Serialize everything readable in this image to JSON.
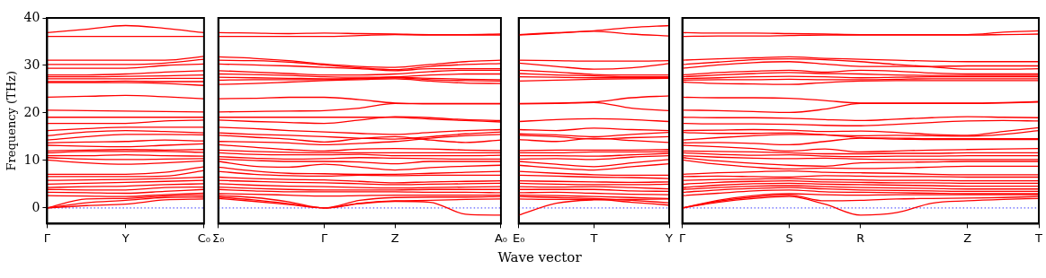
{
  "chart_data": [
    {
      "type": "line",
      "ylabel": "Frequency (THz)",
      "color": "#ff0000",
      "marker": "none",
      "grid": false,
      "legend": false,
      "categories": [
        "Γ",
        null,
        "Y",
        null,
        "C₀"
      ],
      "ylim": [
        -3.3,
        40
      ],
      "yticks": [
        0,
        10,
        20,
        30,
        40
      ],
      "ref_lines": [
        {
          "axis": "y",
          "value": 0,
          "color": "#0000ff",
          "line_style": "dotted"
        }
      ],
      "series": [
        {
          "values": [
            36.9,
            37.6,
            38.4,
            37.8,
            36.9
          ]
        },
        {
          "values": [
            36.1,
            36.1,
            36.1,
            36.1,
            36.1
          ]
        },
        {
          "values": [
            31.1,
            31.1,
            31.1,
            31.1,
            31.9
          ]
        },
        {
          "values": [
            30.2,
            30.2,
            30.2,
            30.5,
            31.3
          ]
        },
        {
          "values": [
            29.4,
            29.4,
            29.4,
            30.0,
            30.3
          ]
        },
        {
          "values": [
            28.0,
            28.0,
            28.2,
            28.6,
            28.9
          ]
        },
        {
          "values": [
            27.6,
            27.6,
            27.7,
            27.8,
            28.0
          ]
        },
        {
          "values": [
            27.2,
            27.2,
            27.2,
            27.3,
            27.3
          ]
        },
        {
          "values": [
            26.6,
            26.6,
            26.7,
            26.6,
            26.6
          ]
        },
        {
          "values": [
            26.4,
            26.4,
            26.4,
            26.2,
            25.8
          ]
        },
        {
          "values": [
            23.3,
            23.5,
            23.7,
            23.4,
            23.0
          ]
        },
        {
          "values": [
            20.6,
            20.5,
            20.4,
            20.3,
            20.2
          ]
        },
        {
          "values": [
            19.1,
            19.1,
            19.1,
            19.1,
            19.1
          ]
        },
        {
          "values": [
            17.8,
            17.8,
            17.8,
            18.3,
            18.5
          ]
        },
        {
          "values": [
            16.3,
            16.7,
            17.0,
            17.0,
            17.0
          ]
        },
        {
          "values": [
            15.2,
            16.0,
            16.3,
            16.1,
            15.8
          ]
        },
        {
          "values": [
            14.3,
            15.0,
            15.5,
            15.5,
            15.4
          ]
        },
        {
          "values": [
            13.7,
            13.9,
            14.0,
            14.3,
            14.1
          ]
        },
        {
          "values": [
            13.2,
            13.0,
            12.9,
            13.2,
            13.5
          ]
        },
        {
          "values": [
            12.0,
            12.2,
            12.3,
            12.2,
            12.3
          ]
        },
        {
          "values": [
            11.6,
            11.9,
            11.9,
            11.9,
            11.7
          ]
        },
        {
          "values": [
            11.0,
            11.0,
            11.2,
            11.0,
            10.9
          ]
        },
        {
          "values": [
            10.6,
            10.3,
            10.2,
            10.3,
            10.4
          ]
        },
        {
          "values": [
            10.1,
            9.5,
            9.2,
            9.5,
            9.9
          ]
        },
        {
          "values": [
            7.1,
            7.1,
            7.1,
            7.5,
            8.7
          ]
        },
        {
          "values": [
            6.6,
            6.6,
            6.6,
            6.7,
            7.9
          ]
        },
        {
          "values": [
            5.8,
            5.9,
            6.0,
            6.2,
            6.5
          ]
        },
        {
          "values": [
            5.0,
            5.2,
            5.4,
            5.6,
            5.8
          ]
        },
        {
          "values": [
            4.3,
            4.5,
            4.6,
            4.9,
            5.1
          ]
        },
        {
          "values": [
            3.9,
            3.8,
            3.8,
            4.3,
            4.4
          ]
        },
        {
          "values": [
            3.3,
            3.2,
            3.1,
            3.5,
            3.9
          ]
        },
        {
          "values": [
            2.6,
            2.5,
            2.4,
            2.8,
            3.1
          ]
        },
        {
          "values": [
            0,
            1.9,
            2.0,
            2.5,
            2.7
          ]
        },
        {
          "values": [
            0,
            1.1,
            1.6,
            2.2,
            2.3
          ]
        },
        {
          "values": [
            0,
            0.5,
            0.8,
            1.7,
            1.9
          ]
        }
      ]
    },
    {
      "type": "line",
      "color": "#ff0000",
      "marker": "none",
      "grid": false,
      "legend": false,
      "tick_labels": "x",
      "categories": [
        "Σ₀",
        null,
        null,
        "Γ",
        null,
        "Z",
        null,
        null,
        "A₀"
      ],
      "ylim": [
        -3.3,
        40
      ],
      "yticks": [
        0,
        10,
        20,
        30,
        40
      ],
      "ref_lines": [
        {
          "axis": "y",
          "value": 0,
          "color": "#0000ff",
          "line_style": "dotted"
        }
      ],
      "series": [
        {
          "values": [
            36.9,
            36.8,
            36.7,
            36.8,
            36.7,
            36.6,
            36.5,
            36.5,
            36.6
          ]
        },
        {
          "values": [
            36.1,
            36.1,
            36.1,
            36.1,
            36.3,
            36.5,
            36.4,
            36.4,
            36.4
          ]
        },
        {
          "values": [
            31.8,
            31.5,
            31.0,
            30.3,
            29.8,
            29.6,
            30.2,
            30.8,
            31.1
          ]
        },
        {
          "values": [
            31.1,
            31.0,
            30.7,
            30.1,
            29.5,
            29.1,
            29.8,
            30.2,
            30.4
          ]
        },
        {
          "values": [
            30.3,
            30.1,
            29.9,
            29.6,
            29.3,
            28.9,
            29.3,
            29.3,
            29.3
          ]
        },
        {
          "values": [
            28.9,
            28.6,
            28.3,
            28.0,
            28.0,
            28.2,
            28.7,
            29.0,
            29.0
          ]
        },
        {
          "values": [
            28.2,
            28.1,
            27.9,
            27.6,
            27.5,
            27.6,
            28.0,
            28.2,
            28.2
          ]
        },
        {
          "values": [
            27.5,
            27.4,
            27.3,
            27.2,
            27.3,
            27.5,
            27.3,
            27.1,
            27.0
          ]
        },
        {
          "values": [
            26.9,
            27.0,
            27.0,
            27.0,
            27.2,
            27.4,
            27.0,
            26.8,
            26.7
          ]
        },
        {
          "values": [
            26.0,
            26.2,
            26.5,
            26.8,
            27.0,
            27.2,
            26.7,
            26.3,
            26.2
          ]
        },
        {
          "values": [
            23.0,
            23.1,
            23.3,
            23.3,
            22.8,
            22.1,
            22.0,
            22.0,
            22.0
          ]
        },
        {
          "values": [
            20.2,
            20.3,
            20.4,
            20.5,
            21.0,
            22.0,
            21.9,
            21.9,
            21.9
          ]
        },
        {
          "values": [
            19.1,
            19.1,
            19.1,
            19.1,
            19.1,
            19.1,
            18.7,
            18.4,
            18.1
          ]
        },
        {
          "values": [
            18.5,
            18.2,
            18.0,
            17.8,
            18.5,
            19.2,
            19.0,
            18.6,
            18.4
          ]
        },
        {
          "values": [
            17.0,
            16.7,
            16.3,
            16.0,
            15.7,
            15.5,
            15.9,
            16.3,
            16.5
          ]
        },
        {
          "values": [
            15.8,
            15.5,
            15.3,
            15.0,
            14.7,
            14.5,
            15.0,
            15.6,
            16.0
          ]
        },
        {
          "values": [
            15.3,
            14.9,
            14.5,
            13.9,
            14.6,
            15.0,
            14.3,
            13.8,
            14.3
          ]
        },
        {
          "values": [
            14.0,
            13.9,
            13.7,
            13.3,
            13.6,
            14.0,
            14.7,
            15.2,
            15.5
          ]
        },
        {
          "values": [
            13.3,
            12.8,
            12.3,
            12.0,
            12.4,
            12.5,
            12.4,
            12.2,
            12.1
          ]
        },
        {
          "values": [
            12.2,
            11.9,
            11.7,
            11.6,
            11.6,
            11.6,
            11.6,
            11.6,
            11.6
          ]
        },
        {
          "values": [
            11.6,
            11.3,
            11.2,
            11.2,
            11.3,
            11.0,
            11.0,
            11.0,
            11.1
          ]
        },
        {
          "values": [
            10.8,
            10.5,
            10.3,
            10.4,
            10.6,
            10.5,
            10.4,
            10.3,
            10.3
          ]
        },
        {
          "values": [
            10.3,
            10.0,
            9.8,
            9.8,
            9.7,
            9.3,
            9.8,
            9.8,
            9.8
          ]
        },
        {
          "values": [
            9.8,
            8.8,
            8.6,
            9.2,
            8.6,
            8.0,
            8.5,
            8.8,
            9.0
          ]
        },
        {
          "values": [
            8.6,
            7.8,
            7.3,
            7.2,
            7.1,
            7.1,
            7.3,
            7.5,
            7.7
          ]
        },
        {
          "values": [
            7.7,
            7.1,
            6.8,
            6.7,
            6.9,
            6.8,
            6.9,
            6.9,
            6.9
          ]
        },
        {
          "values": [
            6.5,
            6.2,
            6.0,
            5.9,
            5.6,
            5.3,
            5.5,
            5.6,
            5.7
          ]
        },
        {
          "values": [
            5.8,
            5.6,
            5.4,
            5.3,
            5.1,
            4.9,
            5.0,
            5.1,
            5.2
          ]
        },
        {
          "values": [
            5.1,
            4.8,
            4.6,
            4.5,
            4.3,
            4.2,
            4.3,
            4.4,
            4.5
          ]
        },
        {
          "values": [
            4.4,
            4.1,
            3.9,
            3.8,
            3.8,
            3.8,
            3.9,
            3.9,
            3.9
          ]
        },
        {
          "values": [
            3.9,
            3.6,
            3.4,
            3.4,
            3.4,
            3.4,
            3.3,
            3.3,
            3.2
          ]
        },
        {
          "values": [
            3.0,
            2.9,
            2.7,
            2.5,
            2.6,
            2.7,
            2.7,
            2.7,
            2.7
          ]
        },
        {
          "values": [
            2.6,
            2.2,
            1.3,
            0,
            1.6,
            2.2,
            2.3,
            2.3,
            2.4
          ]
        },
        {
          "values": [
            2.3,
            1.7,
            0.9,
            0,
            1.0,
            1.5,
            1.6,
            1.8,
            1.9
          ]
        },
        {
          "values": [
            2.0,
            1.4,
            0.7,
            0,
            0.9,
            1.4,
            1.2,
            -1.3,
            -1.5
          ]
        }
      ]
    },
    {
      "type": "line",
      "color": "#ff0000",
      "marker": "none",
      "grid": false,
      "legend": false,
      "tick_labels": "x",
      "xlabel": "Wave vector",
      "categories": [
        "E₀",
        null,
        "T",
        null,
        "Y"
      ],
      "ylim": [
        -3.3,
        40
      ],
      "yticks": [
        0,
        10,
        20,
        30,
        40
      ],
      "ref_lines": [
        {
          "axis": "y",
          "value": 0,
          "color": "#0000ff",
          "line_style": "dotted"
        }
      ],
      "series": [
        {
          "values": [
            36.5,
            36.9,
            37.3,
            38.0,
            38.4
          ]
        },
        {
          "values": [
            36.4,
            36.8,
            37.2,
            36.6,
            36.2
          ]
        },
        {
          "values": [
            31.1,
            31.0,
            30.9,
            30.9,
            31.0
          ]
        },
        {
          "values": [
            30.5,
            29.8,
            29.2,
            29.5,
            30.4
          ]
        },
        {
          "values": [
            29.0,
            28.6,
            28.1,
            28.0,
            28.0
          ]
        },
        {
          "values": [
            28.3,
            28.0,
            27.8,
            27.6,
            27.6
          ]
        },
        {
          "values": [
            27.6,
            27.5,
            27.4,
            27.4,
            27.4
          ]
        },
        {
          "values": [
            26.7,
            26.9,
            27.1,
            27.2,
            27.3
          ]
        },
        {
          "values": [
            22.0,
            22.1,
            22.3,
            23.2,
            23.6
          ]
        },
        {
          "values": [
            21.9,
            22.0,
            22.2,
            21.0,
            20.5
          ]
        },
        {
          "values": [
            18.2,
            18.6,
            18.8,
            18.6,
            18.2
          ]
        },
        {
          "values": [
            16.5,
            16.3,
            16.8,
            16.5,
            16.3
          ]
        },
        {
          "values": [
            15.6,
            15.4,
            15.0,
            15.5,
            15.9
          ]
        },
        {
          "values": [
            15.3,
            15.0,
            14.5,
            14.8,
            15.0
          ]
        },
        {
          "values": [
            14.4,
            14.0,
            14.7,
            14.2,
            13.8
          ]
        },
        {
          "values": [
            12.1,
            12.2,
            12.2,
            12.2,
            12.3
          ]
        },
        {
          "values": [
            11.6,
            11.6,
            11.8,
            11.8,
            11.9
          ]
        },
        {
          "values": [
            11.0,
            11.0,
            10.9,
            11.2,
            11.5
          ]
        },
        {
          "values": [
            10.3,
            10.4,
            10.2,
            10.7,
            11.0
          ]
        },
        {
          "values": [
            9.8,
            9.2,
            8.7,
            9.5,
            10.2
          ]
        },
        {
          "values": [
            9.0,
            8.4,
            8.0,
            8.7,
            9.3
          ]
        },
        {
          "values": [
            7.7,
            7.3,
            7.0,
            6.9,
            6.9
          ]
        },
        {
          "values": [
            6.9,
            6.7,
            6.5,
            6.4,
            6.2
          ]
        },
        {
          "values": [
            5.7,
            5.6,
            5.5,
            5.4,
            5.5
          ]
        },
        {
          "values": [
            5.2,
            5.0,
            4.9,
            4.9,
            5.0
          ]
        },
        {
          "values": [
            4.5,
            4.4,
            4.5,
            4.3,
            4.0
          ]
        },
        {
          "values": [
            3.9,
            3.9,
            3.9,
            3.6,
            3.5
          ]
        },
        {
          "values": [
            3.2,
            3.3,
            3.1,
            2.9,
            2.8
          ]
        },
        {
          "values": [
            2.7,
            2.6,
            2.4,
            2.2,
            2.0
          ]
        },
        {
          "values": [
            2.4,
            2.2,
            2.0,
            1.6,
            1.1
          ]
        },
        {
          "values": [
            1.9,
            1.8,
            1.8,
            1.2,
            0.6
          ]
        },
        {
          "values": [
            -1.5,
            1.0,
            1.7,
            1.8,
            1.9
          ]
        }
      ]
    },
    {
      "type": "line",
      "color": "#ff0000",
      "marker": "none",
      "grid": false,
      "legend": false,
      "tick_labels": "x",
      "categories": [
        "Γ",
        null,
        null,
        "S",
        null,
        "R",
        null,
        null,
        "Z",
        null,
        "T"
      ],
      "ylim": [
        -3.3,
        40
      ],
      "yticks": [
        0,
        10,
        20,
        30,
        40
      ],
      "ref_lines": [
        {
          "axis": "y",
          "value": 0,
          "color": "#0000ff",
          "line_style": "dotted"
        }
      ],
      "series": [
        {
          "values": [
            36.9,
            36.8,
            36.8,
            36.7,
            36.6,
            36.5,
            36.5,
            36.5,
            36.5,
            37.0,
            37.3
          ]
        },
        {
          "values": [
            36.1,
            36.2,
            36.2,
            36.3,
            36.4,
            36.4,
            36.4,
            36.4,
            36.4,
            36.5,
            36.6
          ]
        },
        {
          "values": [
            31.1,
            31.4,
            31.6,
            31.8,
            31.5,
            31.3,
            31.1,
            30.9,
            30.8,
            30.8,
            30.8
          ]
        },
        {
          "values": [
            30.2,
            30.7,
            31.2,
            31.4,
            31.2,
            30.8,
            30.2,
            29.7,
            29.2,
            29.2,
            29.3
          ]
        },
        {
          "values": [
            29.4,
            30.1,
            30.6,
            30.8,
            30.3,
            29.8,
            29.8,
            29.8,
            29.9,
            29.9,
            29.9
          ]
        },
        {
          "values": [
            28.0,
            28.5,
            28.8,
            29.0,
            28.6,
            29.0,
            28.8,
            28.4,
            28.2,
            28.2,
            28.2
          ]
        },
        {
          "values": [
            27.6,
            28.0,
            28.3,
            28.5,
            28.3,
            28.2,
            28.0,
            27.9,
            27.9,
            27.9,
            27.9
          ]
        },
        {
          "values": [
            27.2,
            27.4,
            27.6,
            27.7,
            27.6,
            27.4,
            27.5,
            27.6,
            27.6,
            27.6,
            27.6
          ]
        },
        {
          "values": [
            26.9,
            27.0,
            27.0,
            27.1,
            27.0,
            27.0,
            27.1,
            27.2,
            27.2,
            27.2,
            27.2
          ]
        },
        {
          "values": [
            26.5,
            26.2,
            26.1,
            26.0,
            26.4,
            26.7,
            26.8,
            26.8,
            26.8,
            26.8,
            26.8
          ]
        },
        {
          "values": [
            23.3,
            23.2,
            23.2,
            23.1,
            22.6,
            22.1,
            22.1,
            22.1,
            22.1,
            22.2,
            22.4
          ]
        },
        {
          "values": [
            20.6,
            20.5,
            20.3,
            20.1,
            20.8,
            22.0,
            22.0,
            22.0,
            22.0,
            22.1,
            22.3
          ]
        },
        {
          "values": [
            19.1,
            19.0,
            19.0,
            18.9,
            18.6,
            18.4,
            18.7,
            19.0,
            19.2,
            19.1,
            19.0
          ]
        },
        {
          "values": [
            17.8,
            17.7,
            17.7,
            17.6,
            17.4,
            17.3,
            17.6,
            18.0,
            18.3,
            18.4,
            18.3
          ]
        },
        {
          "values": [
            16.3,
            16.4,
            16.5,
            16.4,
            16.1,
            16.2,
            15.9,
            15.5,
            15.3,
            16.1,
            16.9
          ]
        },
        {
          "values": [
            15.9,
            15.7,
            15.7,
            15.8,
            15.4,
            15.2,
            15.3,
            15.2,
            15.1,
            15.5,
            16.3
          ]
        },
        {
          "values": [
            14.3,
            14.8,
            15.2,
            15.5,
            15.4,
            14.8,
            14.7,
            14.6,
            14.6,
            14.6,
            14.6
          ]
        },
        {
          "values": [
            13.7,
            13.8,
            13.6,
            13.3,
            14.0,
            14.7,
            14.5,
            14.4,
            14.4,
            14.4,
            14.4
          ]
        },
        {
          "values": [
            13.2,
            12.9,
            12.5,
            12.0,
            12.4,
            11.8,
            12.0,
            12.2,
            12.3,
            12.4,
            12.5
          ]
        },
        {
          "values": [
            12.0,
            11.9,
            11.8,
            11.6,
            11.4,
            11.4,
            11.5,
            11.5,
            11.6,
            11.6,
            11.6
          ]
        },
        {
          "values": [
            11.6,
            11.3,
            11.1,
            11.2,
            10.9,
            10.8,
            10.9,
            10.9,
            11.0,
            11.0,
            11.0
          ]
        },
        {
          "values": [
            11.0,
            10.7,
            10.5,
            10.4,
            10.5,
            10.3,
            10.2,
            10.2,
            10.2,
            10.2,
            10.2
          ]
        },
        {
          "values": [
            10.6,
            9.9,
            9.4,
            9.0,
            8.8,
            9.5,
            9.6,
            9.7,
            9.8,
            9.8,
            9.8
          ]
        },
        {
          "values": [
            10.1,
            9.2,
            8.6,
            8.2,
            8.4,
            8.3,
            8.4,
            8.6,
            8.8,
            8.8,
            8.8
          ]
        },
        {
          "values": [
            7.1,
            7.4,
            7.6,
            7.8,
            7.5,
            7.4,
            7.3,
            7.1,
            7.0,
            7.0,
            7.0
          ]
        },
        {
          "values": [
            6.6,
            6.7,
            6.6,
            6.5,
            6.8,
            6.7,
            6.6,
            6.6,
            6.5,
            6.5,
            6.5
          ]
        },
        {
          "values": [
            5.8,
            6.0,
            6.1,
            6.2,
            6.0,
            5.9,
            5.8,
            5.8,
            5.7,
            5.7,
            5.7
          ]
        },
        {
          "values": [
            5.0,
            5.4,
            5.6,
            5.7,
            5.5,
            5.4,
            5.3,
            5.3,
            5.2,
            5.2,
            5.2
          ]
        },
        {
          "values": [
            4.3,
            4.8,
            5.1,
            5.2,
            5.0,
            4.9,
            4.8,
            4.7,
            4.6,
            4.6,
            4.6
          ]
        },
        {
          "values": [
            3.9,
            4.3,
            4.6,
            4.7,
            4.5,
            4.3,
            4.2,
            4.1,
            4.0,
            4.0,
            4.0
          ]
        },
        {
          "values": [
            3.3,
            3.8,
            4.1,
            4.3,
            4.0,
            3.8,
            3.7,
            3.6,
            3.5,
            3.5,
            3.5
          ]
        },
        {
          "values": [
            2.6,
            3.1,
            3.6,
            3.8,
            3.4,
            3.3,
            3.2,
            3.1,
            3.0,
            3.0,
            3.0
          ]
        },
        {
          "values": [
            0,
            1.6,
            2.6,
            3.0,
            2.8,
            2.7,
            2.8,
            2.8,
            2.8,
            2.8,
            2.8
          ]
        },
        {
          "values": [
            0,
            1.2,
            2.0,
            2.4,
            0.8,
            -1.5,
            -1.0,
            1.0,
            1.5,
            1.8,
            2.0
          ]
        },
        {
          "values": [
            0,
            1.4,
            2.3,
            2.7,
            1.5,
            1.6,
            1.9,
            2.0,
            2.1,
            2.2,
            2.4
          ]
        }
      ]
    }
  ]
}
